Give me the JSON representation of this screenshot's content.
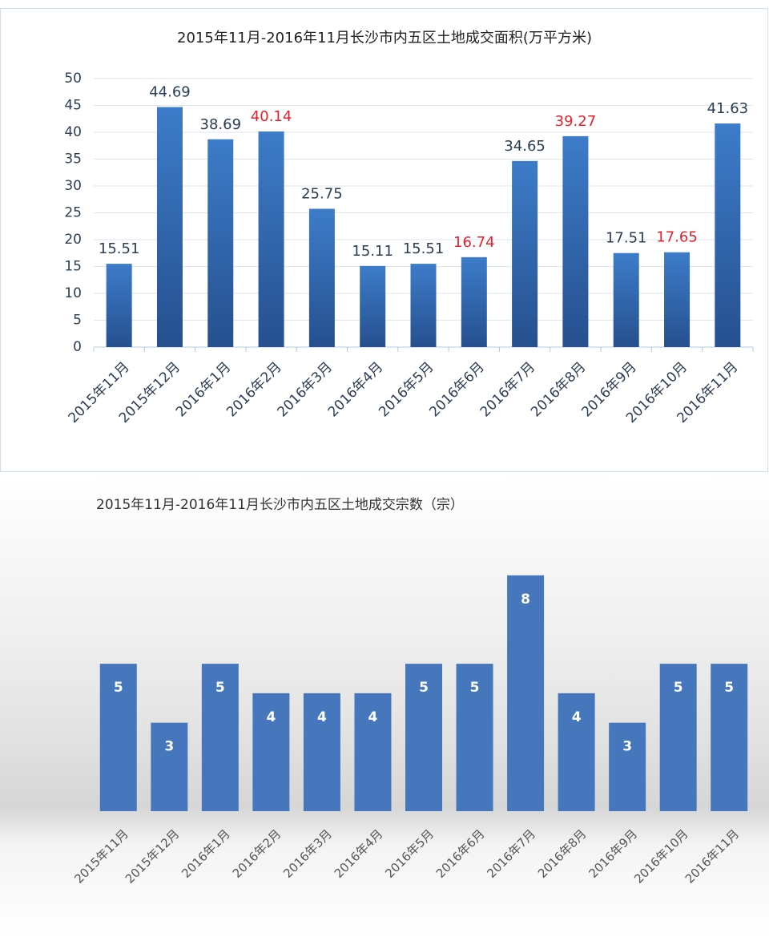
{
  "chart_data": [
    {
      "type": "bar",
      "title": "2015年11月-2016年11月长沙市内五区土地成交面积(万平方米)",
      "categories": [
        "2015年11月",
        "2015年12月",
        "2016年1月",
        "2016年2月",
        "2016年3月",
        "2016年4月",
        "2016年5月",
        "2016年6月",
        "2016年7月",
        "2016年8月",
        "2016年9月",
        "2016年10月",
        "2016年11月"
      ],
      "values": [
        15.51,
        44.69,
        38.69,
        40.14,
        25.75,
        15.11,
        15.51,
        16.74,
        34.65,
        39.27,
        17.51,
        17.65,
        41.63
      ],
      "value_label_colors": [
        "#2b3e55",
        "#2b3e55",
        "#2b3e55",
        "#e8202a",
        "#2b3e55",
        "#2b3e55",
        "#2b3e55",
        "#e8202a",
        "#2b3e55",
        "#e8202a",
        "#2b3e55",
        "#e8202a",
        "#2b3e55"
      ],
      "color": "#3670b8",
      "ylim": [
        0,
        50
      ],
      "yticks": [
        0,
        5,
        10,
        15,
        20,
        25,
        30,
        35,
        40,
        45,
        50
      ],
      "grid": true
    },
    {
      "type": "bar",
      "title": "2015年11月-2016年11月长沙市内五区土地成交宗数（宗）",
      "categories": [
        "2015年11月",
        "2015年12月",
        "2016年1月",
        "2016年2月",
        "2016年3月",
        "2016年4月",
        "2016年5月",
        "2016年6月",
        "2016年7月",
        "2016年8月",
        "2016年9月",
        "2016年10月",
        "2016年11月"
      ],
      "values": [
        5,
        3,
        5,
        4,
        4,
        4,
        5,
        5,
        8,
        4,
        3,
        5,
        5
      ],
      "color": "#4677bd",
      "ylim": [
        0,
        9
      ],
      "label_position": "inside"
    }
  ]
}
